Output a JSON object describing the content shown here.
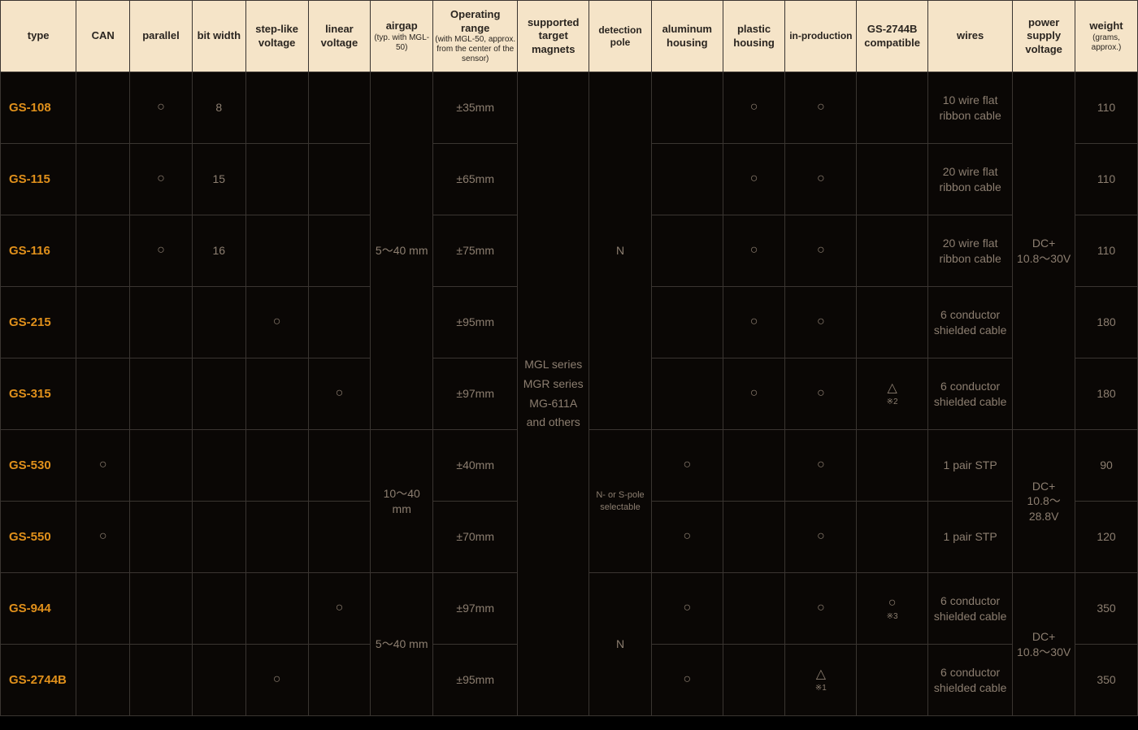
{
  "headers": {
    "type": "type",
    "can": "CAN",
    "parallel": "parallel",
    "bitwidth": "bit width",
    "stepvolt": "step-like voltage",
    "linvolt": "linear voltage",
    "airgap": "airgap",
    "airgap_sub": "(typ. with MGL-50)",
    "oprange": "Operating range",
    "oprange_sub": "(with MGL-50, approx. from the center of the sensor)",
    "magnets": "supported target magnets",
    "pole": "detection pole",
    "alhousing": "aluminum housing",
    "plhousing": "plastic housing",
    "inprod": "in-production",
    "compat": "GS-2744B compatible",
    "wires": "wires",
    "psv": "power supply voltage",
    "weight": "weight",
    "weight_sub": "(grams, approx.)"
  },
  "magnets_span": "MGL series\nMGR series\nMG-611A and others",
  "pole_top": "N",
  "pole_mid": "N- or S-pole selectable",
  "pole_bot": "N",
  "airgap_top": "5〜40 mm",
  "airgap_mid": "10〜40 mm",
  "airgap_bot": "5〜40 mm",
  "psv_top": "DC+ 10.8〜30V",
  "psv_mid": "DC+ 10.8〜28.8V",
  "psv_bot": "DC+ 10.8〜30V",
  "rows": {
    "r1": {
      "type": "GS-108",
      "can": "",
      "parallel": "○",
      "bitwidth": "8",
      "stepvolt": "",
      "linvolt": "",
      "oprange": "±35mm",
      "alhousing": "",
      "plhousing": "○",
      "inprod": "○",
      "compat": "",
      "compat_note": "",
      "wires": "10 wire flat ribbon cable",
      "weight": "110"
    },
    "r2": {
      "type": "GS-115",
      "can": "",
      "parallel": "○",
      "bitwidth": "15",
      "stepvolt": "",
      "linvolt": "",
      "oprange": "±65mm",
      "alhousing": "",
      "plhousing": "○",
      "inprod": "○",
      "compat": "",
      "compat_note": "",
      "wires": "20 wire flat ribbon cable",
      "weight": "110"
    },
    "r3": {
      "type": "GS-116",
      "can": "",
      "parallel": "○",
      "bitwidth": "16",
      "stepvolt": "",
      "linvolt": "",
      "oprange": "±75mm",
      "alhousing": "",
      "plhousing": "○",
      "inprod": "○",
      "compat": "",
      "compat_note": "",
      "wires": "20 wire flat ribbon cable",
      "weight": "110"
    },
    "r4": {
      "type": "GS-215",
      "can": "",
      "parallel": "",
      "bitwidth": "",
      "stepvolt": "○",
      "linvolt": "",
      "oprange": "±95mm",
      "alhousing": "",
      "plhousing": "○",
      "inprod": "○",
      "compat": "",
      "compat_note": "",
      "wires": "6 conductor shielded cable",
      "weight": "180"
    },
    "r5": {
      "type": "GS-315",
      "can": "",
      "parallel": "",
      "bitwidth": "",
      "stepvolt": "",
      "linvolt": "○",
      "oprange": "±97mm",
      "alhousing": "",
      "plhousing": "○",
      "inprod": "○",
      "compat": "△",
      "compat_note": "※2",
      "wires": "6 conductor shielded cable",
      "weight": "180"
    },
    "r6": {
      "type": "GS-530",
      "can": "○",
      "parallel": "",
      "bitwidth": "",
      "stepvolt": "",
      "linvolt": "",
      "oprange": "±40mm",
      "alhousing": "○",
      "plhousing": "",
      "inprod": "○",
      "compat": "",
      "compat_note": "",
      "wires": "1 pair STP",
      "weight": "90"
    },
    "r7": {
      "type": "GS-550",
      "can": "○",
      "parallel": "",
      "bitwidth": "",
      "stepvolt": "",
      "linvolt": "",
      "oprange": "±70mm",
      "alhousing": "○",
      "plhousing": "",
      "inprod": "○",
      "compat": "",
      "compat_note": "",
      "wires": "1 pair STP",
      "weight": "120"
    },
    "r8": {
      "type": "GS-944",
      "can": "",
      "parallel": "",
      "bitwidth": "",
      "stepvolt": "",
      "linvolt": "○",
      "oprange": "±97mm",
      "alhousing": "○",
      "plhousing": "",
      "inprod": "○",
      "compat": "○",
      "compat_note": "※3",
      "wires": "6 conductor shielded cable",
      "weight": "350"
    },
    "r9": {
      "type": "GS-2744B",
      "can": "",
      "parallel": "",
      "bitwidth": "",
      "stepvolt": "○",
      "linvolt": "",
      "oprange": "±95mm",
      "alhousing": "○",
      "plhousing": "",
      "inprod": "△",
      "inprod_note": "※1",
      "compat": "",
      "compat_note": "",
      "wires": "6 conductor shielded cable",
      "weight": "350"
    }
  }
}
